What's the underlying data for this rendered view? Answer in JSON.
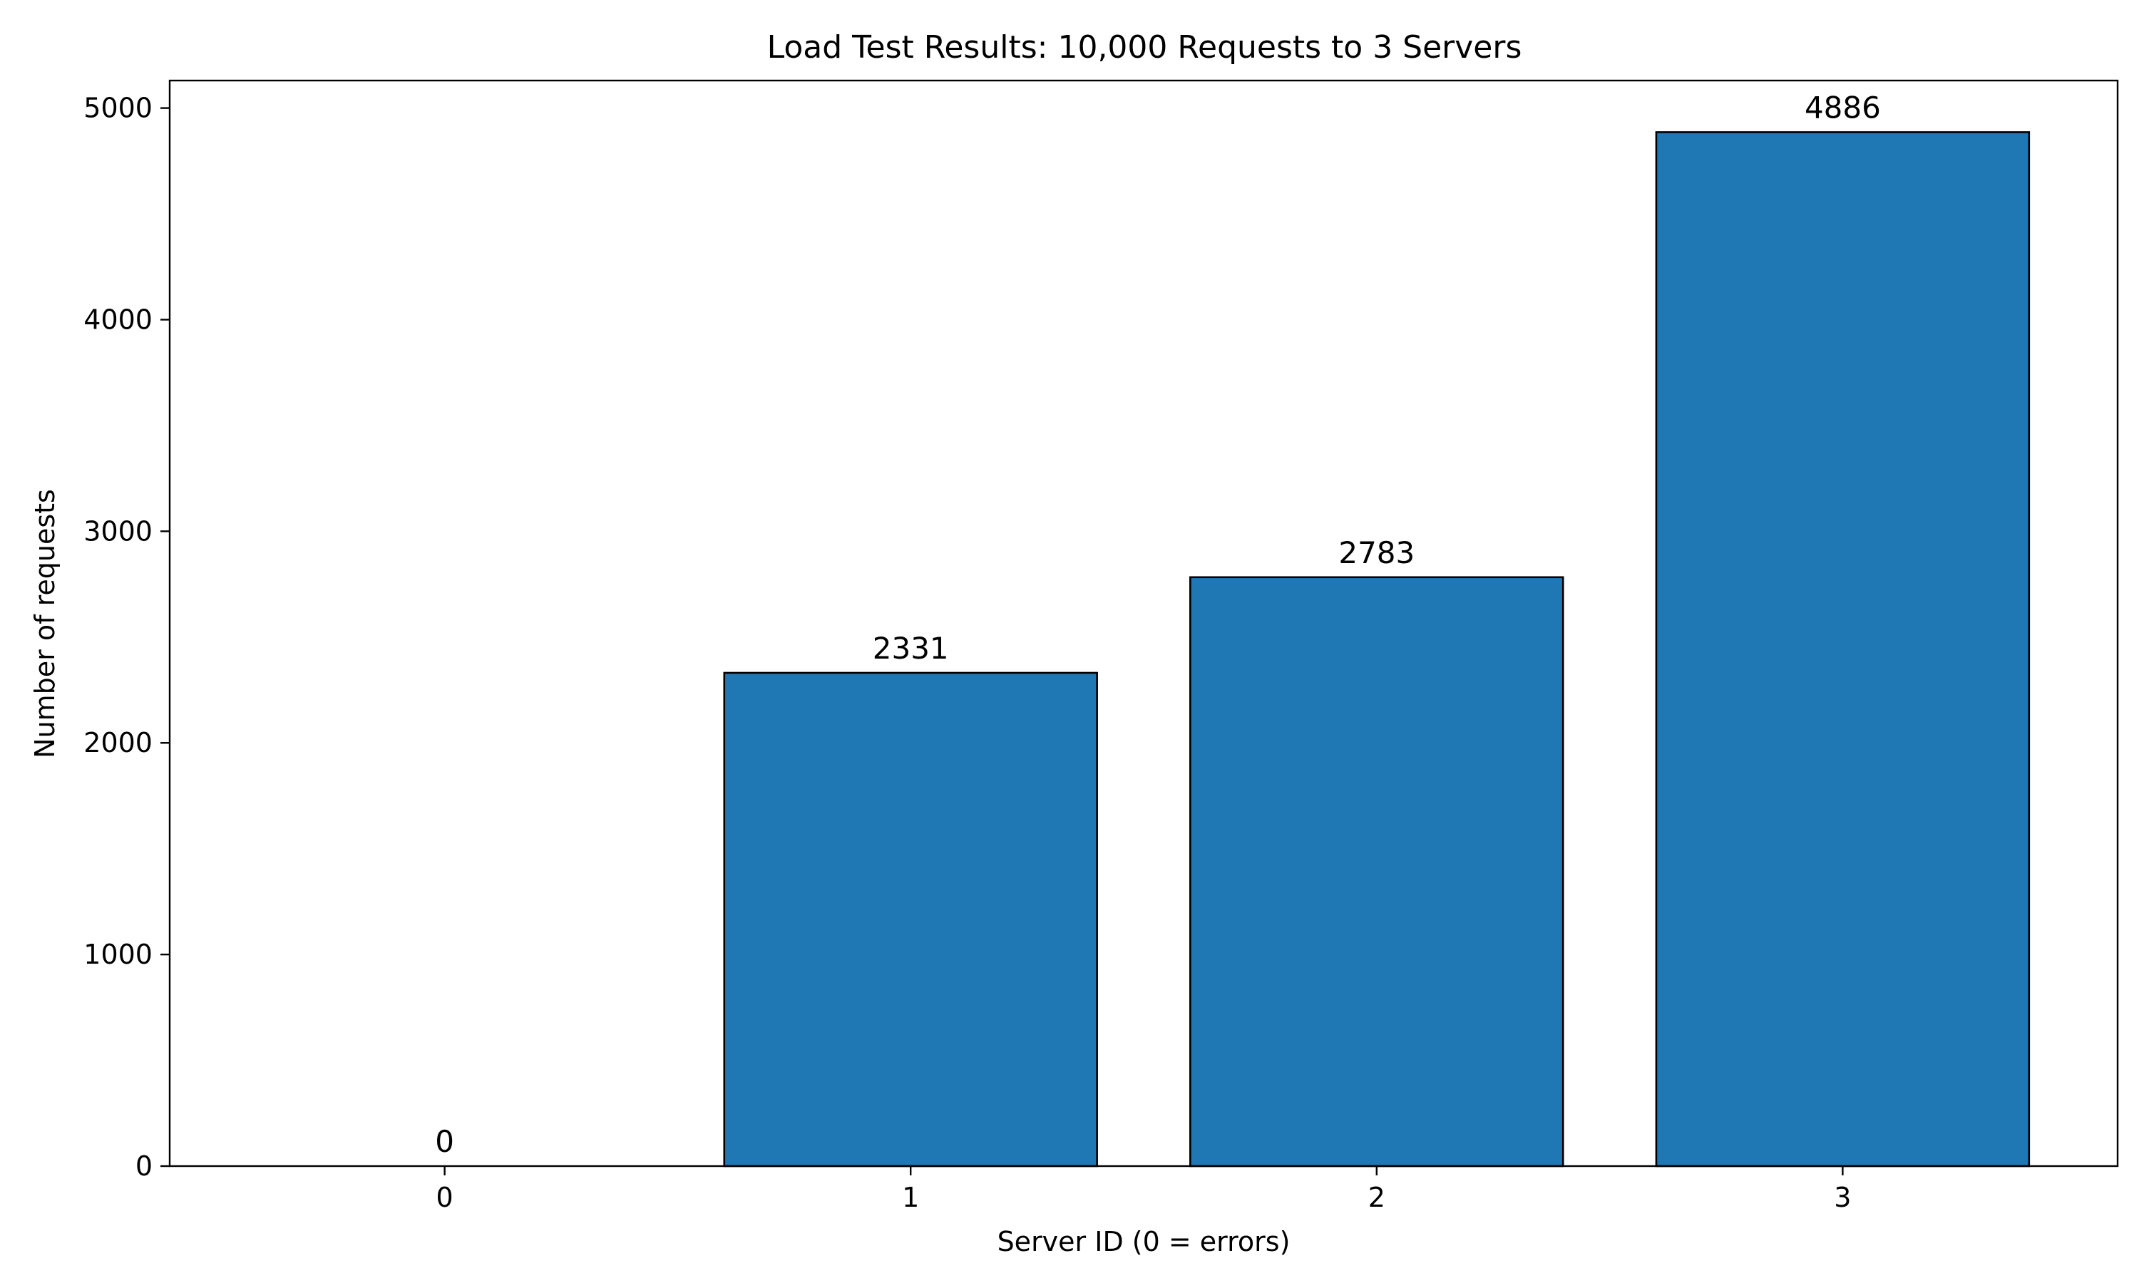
{
  "chart_data": {
    "type": "bar",
    "title": "Load Test Results: 10,000 Requests to 3 Servers",
    "xlabel": "Server ID (0 = errors)",
    "ylabel": "Number of requests",
    "categories": [
      "0",
      "1",
      "2",
      "3"
    ],
    "values": [
      0,
      2331,
      2783,
      4886
    ],
    "data_labels": [
      "0",
      "2331",
      "2783",
      "4886"
    ],
    "yticks": [
      0,
      1000,
      2000,
      3000,
      4000,
      5000
    ],
    "ytick_labels": [
      "0",
      "1000",
      "2000",
      "3000",
      "4000",
      "5000"
    ],
    "ylim": [
      0,
      5130
    ],
    "xlim": [
      -0.59,
      3.59
    ],
    "bar_width": 0.8,
    "bar_color": "#1f77b4",
    "bar_edge_color": "#000000",
    "grid": false,
    "legend": "none"
  }
}
